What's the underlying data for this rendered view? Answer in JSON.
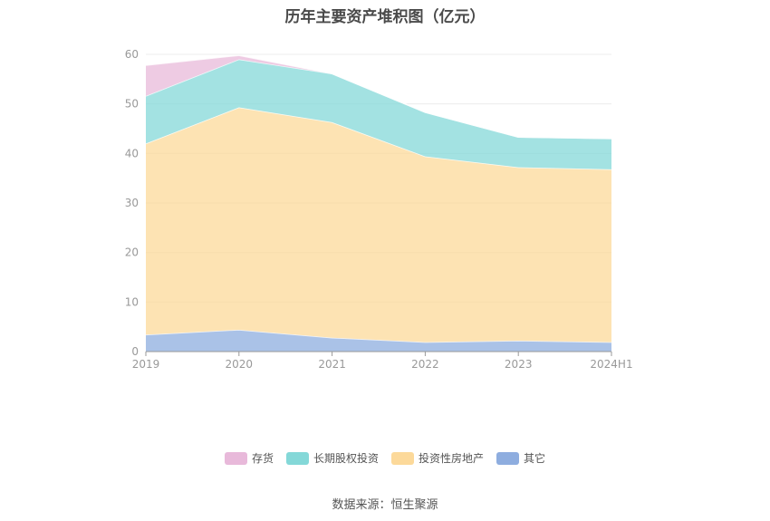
{
  "chart_data": {
    "type": "area",
    "stacked": true,
    "title": "历年主要资产堆积图（亿元）",
    "categories": [
      "2019",
      "2020",
      "2021",
      "2022",
      "2023",
      "2024H1"
    ],
    "ylim": [
      0,
      60
    ],
    "yticks": [
      "0",
      "10",
      "20",
      "30",
      "40",
      "50",
      "60"
    ],
    "grid": true,
    "legend_position": "bottom",
    "series": [
      {
        "name": "其它",
        "color": "#8eaddf",
        "values": [
          3.4,
          4.4,
          2.8,
          1.9,
          2.2,
          1.9
        ]
      },
      {
        "name": "投资性房地产",
        "color": "#fcd99a",
        "values": [
          38.6,
          44.9,
          43.5,
          37.5,
          35.0,
          34.9
        ]
      },
      {
        "name": "长期股权投资",
        "color": "#84d8d8",
        "values": [
          9.6,
          9.7,
          9.8,
          8.9,
          6.1,
          6.2
        ]
      },
      {
        "name": "存货",
        "color": "#e8b9da",
        "values": [
          6.2,
          0.8,
          0.0,
          0.0,
          0.0,
          0.0
        ]
      }
    ]
  },
  "legend_order": [
    3,
    2,
    1,
    0
  ],
  "footer": {
    "source": "数据来源：恒生聚源"
  }
}
